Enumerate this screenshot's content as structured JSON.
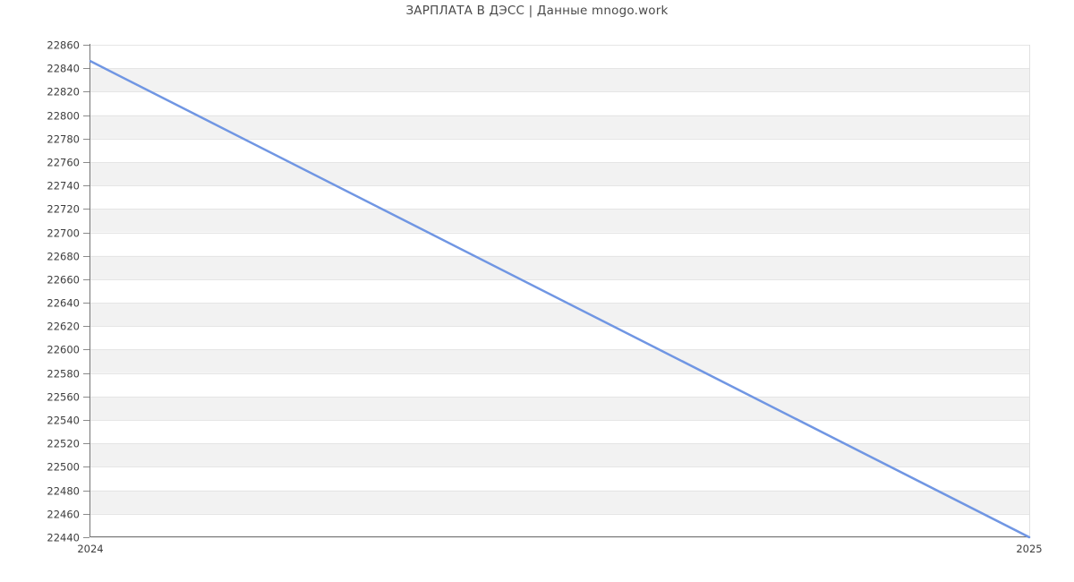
{
  "chart_data": {
    "type": "line",
    "title": "ЗАРПЛАТА В ДЭСС | Данные mnogo.work",
    "categories": [
      "2024",
      "2025"
    ],
    "values": [
      22846,
      22440
    ],
    "ylim": [
      22440,
      22860
    ],
    "ytick_step": 20,
    "xlabel": "",
    "ylabel": "",
    "legend": false,
    "grid": true,
    "plot_bands": "alternating-horizontal-per-tick",
    "colors": {
      "line": "#7096e3",
      "band": "#f2f2f2",
      "gridline": "#e5e5e5",
      "plot_border": "#e0e0e0",
      "axis": "#767676",
      "tick_mark": "#8a8a8a",
      "tick_label": "#3d3d3d",
      "title": "#4a4a4a",
      "background": "#ffffff"
    }
  }
}
